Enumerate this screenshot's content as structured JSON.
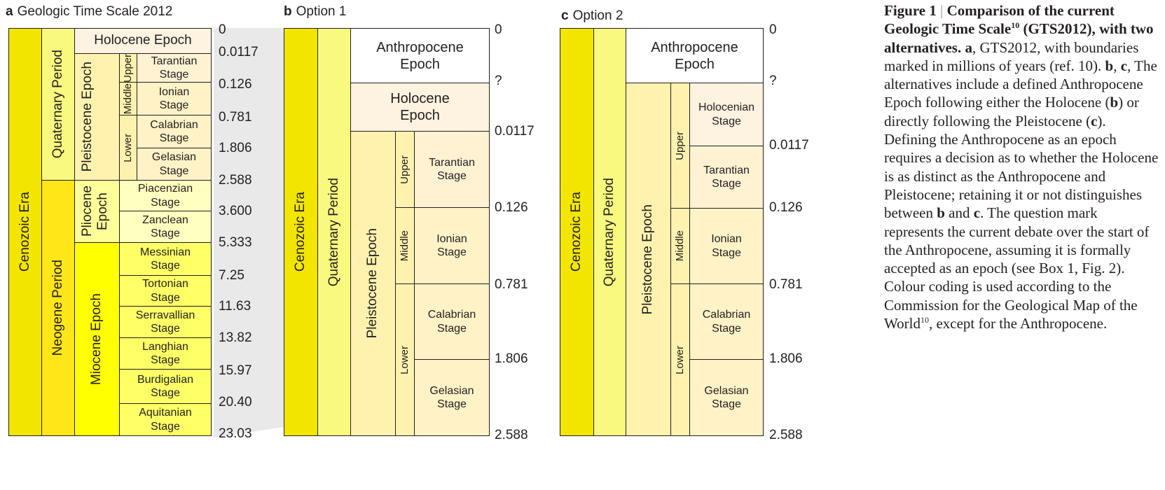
{
  "panel_a": {
    "letter": "a",
    "title": "Geologic Time Scale 2012",
    "era": "Cenozoic Era",
    "quaternary": "Quaternary Period",
    "neogene": "Neogene Period",
    "holocene": "Holocene Epoch",
    "pleistocene": "Pleistocene Epoch",
    "pliocene": "Pliocene Epoch",
    "miocene": "Miocene Epoch",
    "upper": "Upper",
    "middle": "Middle",
    "lower": "Lower",
    "stages": [
      "Tarantian Stage",
      "Ionian Stage",
      "Calabrian Stage",
      "Gelasian Stage",
      "Piacenzian Stage",
      "Zanclean Stage",
      "Messinian Stage",
      "Tortonian Stage",
      "Serravallian Stage",
      "Langhian Stage",
      "Burdigalian Stage",
      "Aquitanian Stage"
    ],
    "ticks": [
      "0",
      "0.0117",
      "0.126",
      "0.781",
      "1.806",
      "2.588",
      "3.600",
      "5.333",
      "7.25",
      "11.63",
      "13.82",
      "15.97",
      "20.40",
      "23.03"
    ]
  },
  "panel_b": {
    "letter": "b",
    "title": "Option 1",
    "era": "Cenozoic Era",
    "quaternary": "Quaternary Period",
    "anthropocene": "Anthropocene Epoch",
    "holocene": "Holocene Epoch",
    "pleistocene": "Pleistocene Epoch",
    "upper": "Upper",
    "middle": "Middle",
    "lower": "Lower",
    "stages": [
      "Tarantian Stage",
      "Ionian Stage",
      "Calabrian Stage",
      "Gelasian Stage"
    ],
    "ticks": [
      "0",
      "?",
      "0.0117",
      "0.126",
      "0.781",
      "1.806",
      "2.588"
    ]
  },
  "panel_c": {
    "letter": "c",
    "title": "Option 2",
    "era": "Cenozoic Era",
    "quaternary": "Quaternary Period",
    "anthropocene": "Anthropocene Epoch",
    "pleistocene": "Pleistocene Epoch",
    "upper": "Upper",
    "middle": "Middle",
    "lower": "Lower",
    "stages": [
      "Holocenian Stage",
      "Tarantian Stage",
      "Ionian Stage",
      "Calabrian Stage",
      "Gelasian Stage"
    ],
    "ticks": [
      "0",
      "?",
      "0.0117",
      "0.126",
      "0.781",
      "1.806",
      "2.588"
    ]
  },
  "caption": {
    "label": "Figure 1",
    "separator": "|",
    "heading": "Comparison of the current Geologic Time Scale",
    "heading_ref": "10",
    "heading_end": "(GTS2012), with two alternatives.",
    "a_letter": "a",
    "a_text": ", GTS2012, with boundaries marked in millions of years (ref. 10).",
    "b_letter": "b",
    "c_letter": "c",
    "bc_text": "The alternatives include a defined Anthropocene Epoch following either the Holocene (",
    "bc_text2": ") or directly following the Pleistocene (",
    "bc_text3": "). Defining the Anthropocene as an epoch requires a decision as to whether the Holocene is as distinct as the Anthropocene and Pleistocene; retaining it or not distinguishes between",
    "and": "and",
    "rest": ". The question mark represents the current debate over the start of the Anthropocene, assuming it is formally accepted as an epoch (see Box 1, Fig. 2). Colour coding is used according to the Commission for the Geological Map of the World",
    "rest_ref": "10",
    "end": ", except for the Anthropocene."
  }
}
